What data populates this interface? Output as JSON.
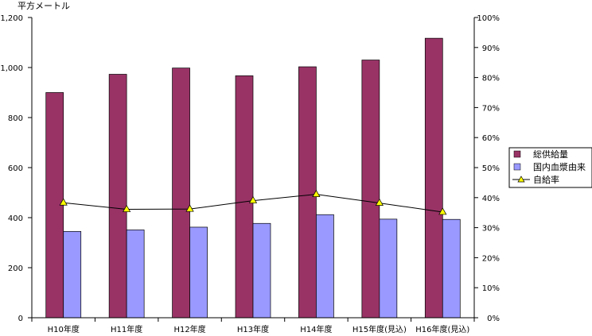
{
  "chart_data": {
    "type": "bar",
    "ylabel": "平方メートル",
    "ylim": [
      0,
      1200
    ],
    "y2lim": [
      0,
      1
    ],
    "y_ticks": [
      "0",
      "200",
      "400",
      "600",
      "800",
      "1,000",
      "1,200"
    ],
    "y2_ticks": [
      "0%",
      "10%",
      "20%",
      "30%",
      "40%",
      "50%",
      "60%",
      "70%",
      "80%",
      "90%",
      "100%"
    ],
    "categories": [
      "H10年度",
      "H11年度",
      "H12年度",
      "H13年度",
      "H14年度",
      "H15年度(見込)",
      "H16年度(見込)"
    ],
    "series": [
      {
        "name": "総供給量",
        "kind": "bar",
        "axis": "left",
        "color": "#993366",
        "values": [
          900,
          973,
          998,
          967,
          1003,
          1030,
          1117
        ]
      },
      {
        "name": "国内血漿由来",
        "kind": "bar",
        "axis": "left",
        "color": "#9999ff",
        "values": [
          345,
          351,
          362,
          377,
          412,
          394,
          393
        ]
      },
      {
        "name": "自給率",
        "kind": "line",
        "axis": "right",
        "color": "#000000",
        "marker_color": "#ffff00",
        "marker": "triangle",
        "values": [
          0.383,
          0.361,
          0.362,
          0.39,
          0.411,
          0.382,
          0.352
        ]
      }
    ],
    "grid": false,
    "legend_position": "right"
  }
}
